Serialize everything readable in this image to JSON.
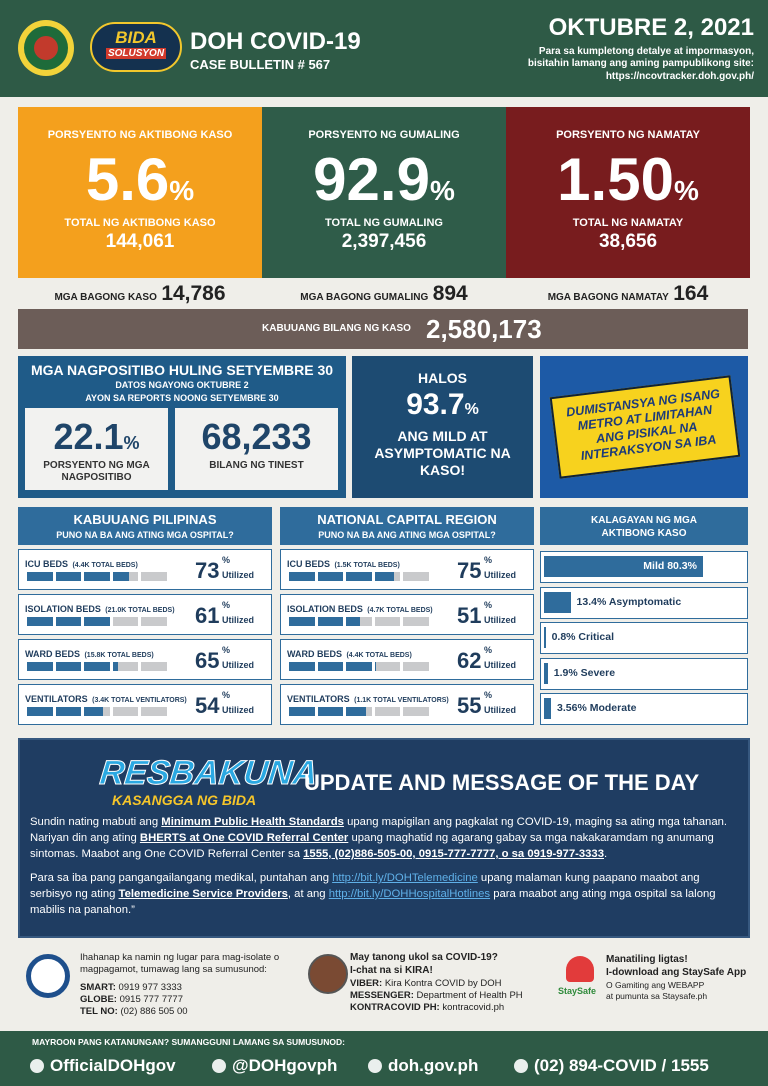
{
  "header": {
    "brand_top": "BIDA",
    "brand_bottom": "SOLUSYON",
    "title": "DOH COVID-19",
    "bulletin": "CASE BULLETIN # 567",
    "date": "OKTUBRE 2, 2021",
    "note": "Para sa kumpletong detalye at impormasyon, bisitahin lamang ang aming pampublikong site:",
    "url": "https://ncovtracker.doh.gov.ph/"
  },
  "summary": {
    "cards": [
      {
        "label": "PORSYENTO NG AKTIBONG KASO",
        "value": "5.6",
        "unit": "%",
        "total_label": "TOTAL NG AKTIBONG KASO",
        "total": "144,061"
      },
      {
        "label": "PORSYENTO NG GUMALING",
        "value": "92.9",
        "unit": "%",
        "total_label": "TOTAL NG GUMALING",
        "total": "2,397,456"
      },
      {
        "label": "PORSYENTO NG NAMATAY",
        "value": "1.50",
        "unit": "%",
        "total_label": "TOTAL NG NAMATAY",
        "total": "38,656"
      }
    ],
    "new": [
      {
        "label": "MGA BAGONG KASO",
        "value": "14,786"
      },
      {
        "label": "MGA BAGONG GUMALING",
        "value": "894"
      },
      {
        "label": "MGA BAGONG NAMATAY",
        "value": "164"
      }
    ],
    "total": {
      "label": "KABUUANG BILANG NG KASO",
      "value": "2,580,173"
    }
  },
  "positivity": {
    "title": "MGA NAGPOSITIBO HULING SETYEMBRE 30",
    "subtitle_1": "DATOS NGAYONG OKTUBRE 2",
    "subtitle_2": "AYON SA REPORTS NOONG SETYEMBRE 30",
    "boxes": [
      {
        "value": "22.1",
        "unit": "%",
        "label": "PORSYENTO NG MGA NAGPOSITIBO"
      },
      {
        "value": "68,233",
        "label": "BILANG NG TINEST"
      }
    ]
  },
  "mild": {
    "lead": "HALOS",
    "value": "93.7",
    "unit": "%",
    "text": "ANG MILD AT ASYMPTOMATIC NA KASO!"
  },
  "banner": {
    "text": "DUMISTANSYA NG ISANG METRO AT LIMITAHAN ANG PISIKAL NA INTERAKSYON SA IBA"
  },
  "hospitals": [
    {
      "title": "KABUUANG PILIPINAS",
      "subtitle": "PUNO NA BA ANG ATING MGA OSPITAL?",
      "rows": [
        {
          "label": "ICU BEDS",
          "capacity": "(4.4K TOTAL BEDS)",
          "value": 73,
          "unit": "%",
          "suffix": "Utilized"
        },
        {
          "label": "ISOLATION BEDS",
          "capacity": "(21.0K TOTAL BEDS)",
          "value": 61,
          "unit": "%",
          "suffix": "Utilized"
        },
        {
          "label": "WARD BEDS",
          "capacity": "(15.8K TOTAL BEDS)",
          "value": 65,
          "unit": "%",
          "suffix": "Utilized"
        },
        {
          "label": "VENTILATORS",
          "capacity": "(3.4K TOTAL VENTILATORS)",
          "value": 54,
          "unit": "%",
          "suffix": "Utilized"
        }
      ]
    },
    {
      "title": "NATIONAL CAPITAL REGION",
      "subtitle": "PUNO NA BA ANG ATING MGA OSPITAL?",
      "rows": [
        {
          "label": "ICU BEDS",
          "capacity": "(1.5K TOTAL BEDS)",
          "value": 75,
          "unit": "%",
          "suffix": "Utilized"
        },
        {
          "label": "ISOLATION BEDS",
          "capacity": "(4.7K TOTAL BEDS)",
          "value": 51,
          "unit": "%",
          "suffix": "Utilized"
        },
        {
          "label": "WARD BEDS",
          "capacity": "(4.4K TOTAL BEDS)",
          "value": 62,
          "unit": "%",
          "suffix": "Utilized"
        },
        {
          "label": "VENTILATORS",
          "capacity": "(1.1K TOTAL VENTILATORS)",
          "value": 55,
          "unit": "%",
          "suffix": "Utilized"
        }
      ]
    }
  ],
  "status": {
    "title": "KALAGAYAN NG MGA AKTIBONG KASO",
    "items": [
      {
        "label": "Mild 80.3%",
        "value": 80.3
      },
      {
        "label": "13.4% Asymptomatic",
        "value": 13.4
      },
      {
        "label": "0.8% Critical",
        "value": 0.8
      },
      {
        "label": "1.9% Severe",
        "value": 1.9
      },
      {
        "label": "3.56% Moderate",
        "value": 3.56
      }
    ]
  },
  "message": {
    "logo": "RESBAKUNA",
    "logo_sub": "KASANGGA NG BIDA",
    "heading": "UPDATE AND MESSAGE OF THE DAY",
    "paragraphs": [
      [
        {
          "text": "Sundin nating mabuti ang "
        },
        {
          "text": "Minimum Public Health Standards",
          "style": "strong"
        },
        {
          "text": " upang mapigilan ang pagkalat ng COVID-19, maging sa ating mga tahanan. Nariyan din ang ating "
        },
        {
          "text": "BHERTS at One COVID Referral Center",
          "style": "strong"
        },
        {
          "text": " upang maghatid ng agarang gabay sa mga nakakaramdam ng anumang sintomas. Maabot ang One COVID Referral Center sa "
        },
        {
          "text": "1555, (02)886-505-00, 0915-777-7777, o sa 0919-977-3333",
          "style": "strong"
        },
        {
          "text": "."
        }
      ],
      [
        {
          "text": "Para sa iba pang pangangailangang medikal, puntahan ang "
        },
        {
          "text": "http://bit.ly/DOHTelemedicine",
          "style": "link"
        },
        {
          "text": " upang malaman kung paapano maabot ang serbisyo ng ating "
        },
        {
          "text": "Telemedicine Service Providers",
          "style": "strong"
        },
        {
          "text": ", at ang "
        },
        {
          "text": "http://bit.ly/DOHHospitalHotlines",
          "style": "link"
        },
        {
          "text": " para maabot ang ating mga ospital sa lalong mabilis na panahon.”"
        }
      ]
    ]
  },
  "contacts": {
    "isolation": {
      "text": "Ihahanap ka namin ng lugar para mag-isolate o magpagamot, tumawag lang sa sumusunod:",
      "lines": [
        {
          "label": "SMART:",
          "value": "0919 977 3333"
        },
        {
          "label": "GLOBE:",
          "value": "0915 777 7777"
        },
        {
          "label": "TEL NO:",
          "value": "(02) 886 505 00"
        }
      ]
    },
    "kira": {
      "question": "May tanong ukol sa COVID-19?",
      "cta": "I-chat na si KIRA!",
      "lines": [
        {
          "label": "VIBER:",
          "value": "Kira Kontra COVID by DOH"
        },
        {
          "label": "MESSENGER:",
          "value": "Department of Health PH"
        },
        {
          "label": "KONTRACOVID PH:",
          "value": "kontracovid.ph"
        }
      ]
    },
    "staysafe": {
      "logo": "StaySafe",
      "lead": "Manatiling ligtas!",
      "cta": "I-download ang StaySafe App",
      "line_1": "O Gamiting ang WEBAPP",
      "line_2": "at pumunta sa Staysafe.ph"
    }
  },
  "footer": {
    "label": "MAYROON PANG KATANUNGAN? SUMANGGUNI LAMANG SA SUMUSUNOD:",
    "items": [
      "OfficialDOHgov",
      "@DOHgovph",
      "doh.gov.ph",
      "(02) 894-COVID / 1555"
    ]
  }
}
